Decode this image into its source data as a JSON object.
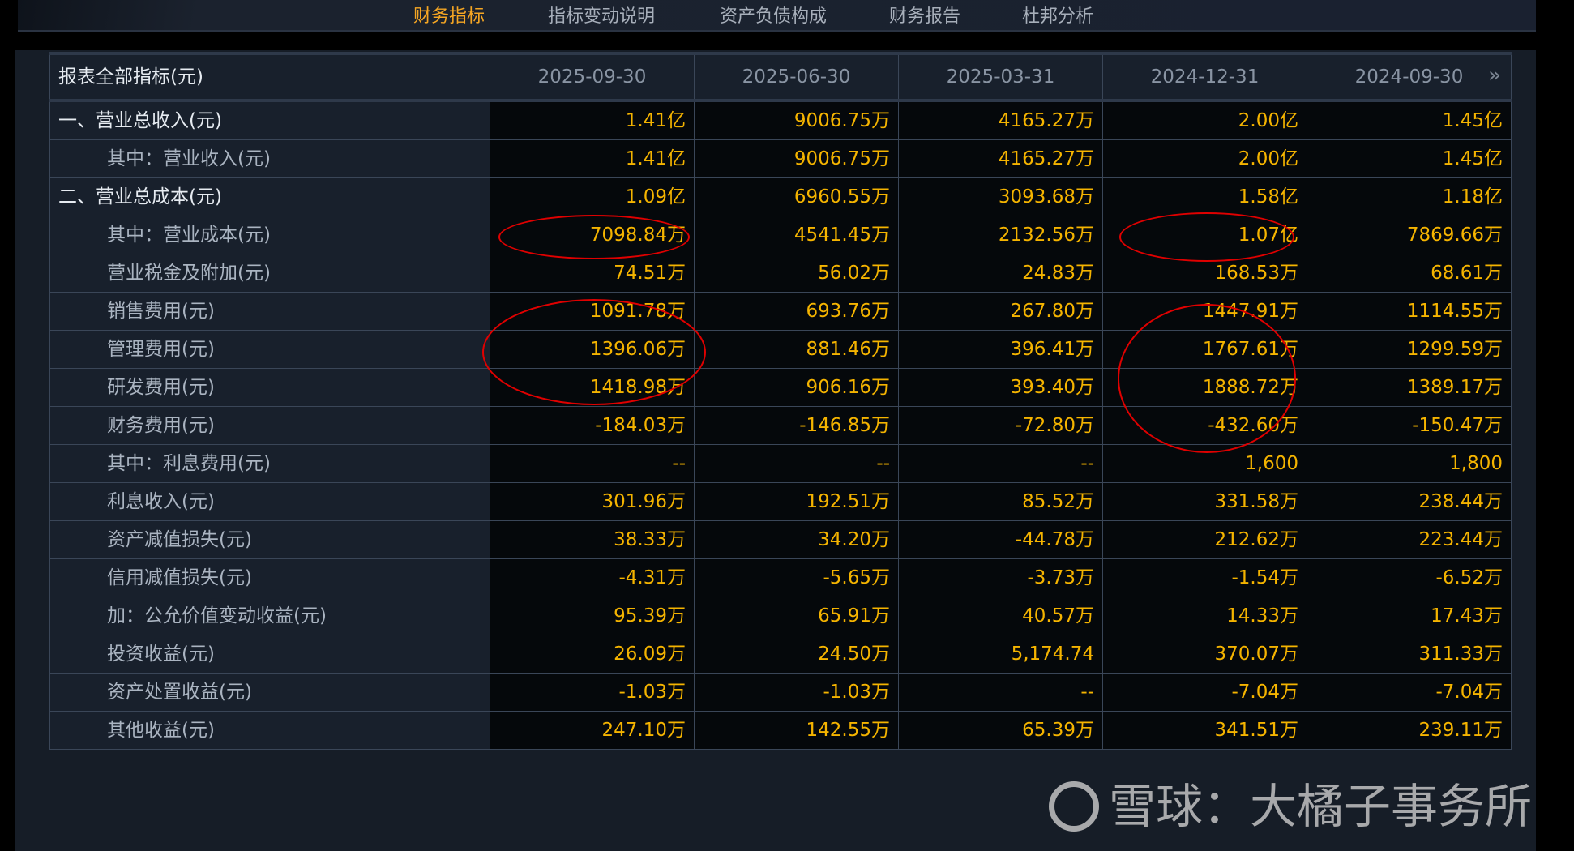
{
  "tabs": [
    {
      "label": "财务指标",
      "active": true
    },
    {
      "label": "指标变动说明",
      "active": false
    },
    {
      "label": "资产负债构成",
      "active": false
    },
    {
      "label": "财务报告",
      "active": false
    },
    {
      "label": "杜邦分析",
      "active": false
    }
  ],
  "table": {
    "header_label": "报表全部指标(元)",
    "periods": [
      "2025-09-30",
      "2025-06-30",
      "2025-03-31",
      "2024-12-31",
      "2024-09-30"
    ],
    "more_icon": "double-chevron-right",
    "rows": [
      {
        "label": "一、营业总收入(元)",
        "level": 0,
        "values": [
          "1.41亿",
          "9006.75万",
          "4165.27万",
          "2.00亿",
          "1.45亿"
        ]
      },
      {
        "label": "其中：营业收入(元)",
        "level": 1,
        "values": [
          "1.41亿",
          "9006.75万",
          "4165.27万",
          "2.00亿",
          "1.45亿"
        ]
      },
      {
        "label": "二、营业总成本(元)",
        "level": 0,
        "values": [
          "1.09亿",
          "6960.55万",
          "3093.68万",
          "1.58亿",
          "1.18亿"
        ]
      },
      {
        "label": "其中：营业成本(元)",
        "level": 1,
        "values": [
          "7098.84万",
          "4541.45万",
          "2132.56万",
          "1.07亿",
          "7869.66万"
        ]
      },
      {
        "label": "营业税金及附加(元)",
        "level": 1,
        "values": [
          "74.51万",
          "56.02万",
          "24.83万",
          "168.53万",
          "68.61万"
        ]
      },
      {
        "label": "销售费用(元)",
        "level": 1,
        "values": [
          "1091.78万",
          "693.76万",
          "267.80万",
          "1447.91万",
          "1114.55万"
        ]
      },
      {
        "label": "管理费用(元)",
        "level": 1,
        "values": [
          "1396.06万",
          "881.46万",
          "396.41万",
          "1767.61万",
          "1299.59万"
        ]
      },
      {
        "label": "研发费用(元)",
        "level": 1,
        "values": [
          "1418.98万",
          "906.16万",
          "393.40万",
          "1888.72万",
          "1389.17万"
        ]
      },
      {
        "label": "财务费用(元)",
        "level": 1,
        "values": [
          "-184.03万",
          "-146.85万",
          "-72.80万",
          "-432.60万",
          "-150.47万"
        ]
      },
      {
        "label": "其中：利息费用(元)",
        "level": 1,
        "values": [
          "--",
          "--",
          "--",
          "1,600",
          "1,800"
        ]
      },
      {
        "label": "利息收入(元)",
        "level": 1,
        "values": [
          "301.96万",
          "192.51万",
          "85.52万",
          "331.58万",
          "238.44万"
        ]
      },
      {
        "label": "资产减值损失(元)",
        "level": 1,
        "values": [
          "38.33万",
          "34.20万",
          "-44.78万",
          "212.62万",
          "223.44万"
        ]
      },
      {
        "label": "信用减值损失(元)",
        "level": 1,
        "values": [
          "-4.31万",
          "-5.65万",
          "-3.73万",
          "-1.54万",
          "-6.52万"
        ]
      },
      {
        "label": "加：公允价值变动收益(元)",
        "level": 1,
        "values": [
          "95.39万",
          "65.91万",
          "40.57万",
          "14.33万",
          "17.43万"
        ]
      },
      {
        "label": "投资收益(元)",
        "level": 1,
        "values": [
          "26.09万",
          "24.50万",
          "5,174.74",
          "370.07万",
          "311.33万"
        ]
      },
      {
        "label": "资产处置收益(元)",
        "level": 1,
        "values": [
          "-1.03万",
          "-1.03万",
          "--",
          "-7.04万",
          "-7.04万"
        ]
      },
      {
        "label": "其他收益(元)",
        "level": 1,
        "values": [
          "247.10万",
          "142.55万",
          "65.39万",
          "341.51万",
          "239.11万"
        ]
      }
    ]
  },
  "annotation_color": "#e00000",
  "accent_color": "#f5b400",
  "watermark": "雪球：大橘子事务所"
}
